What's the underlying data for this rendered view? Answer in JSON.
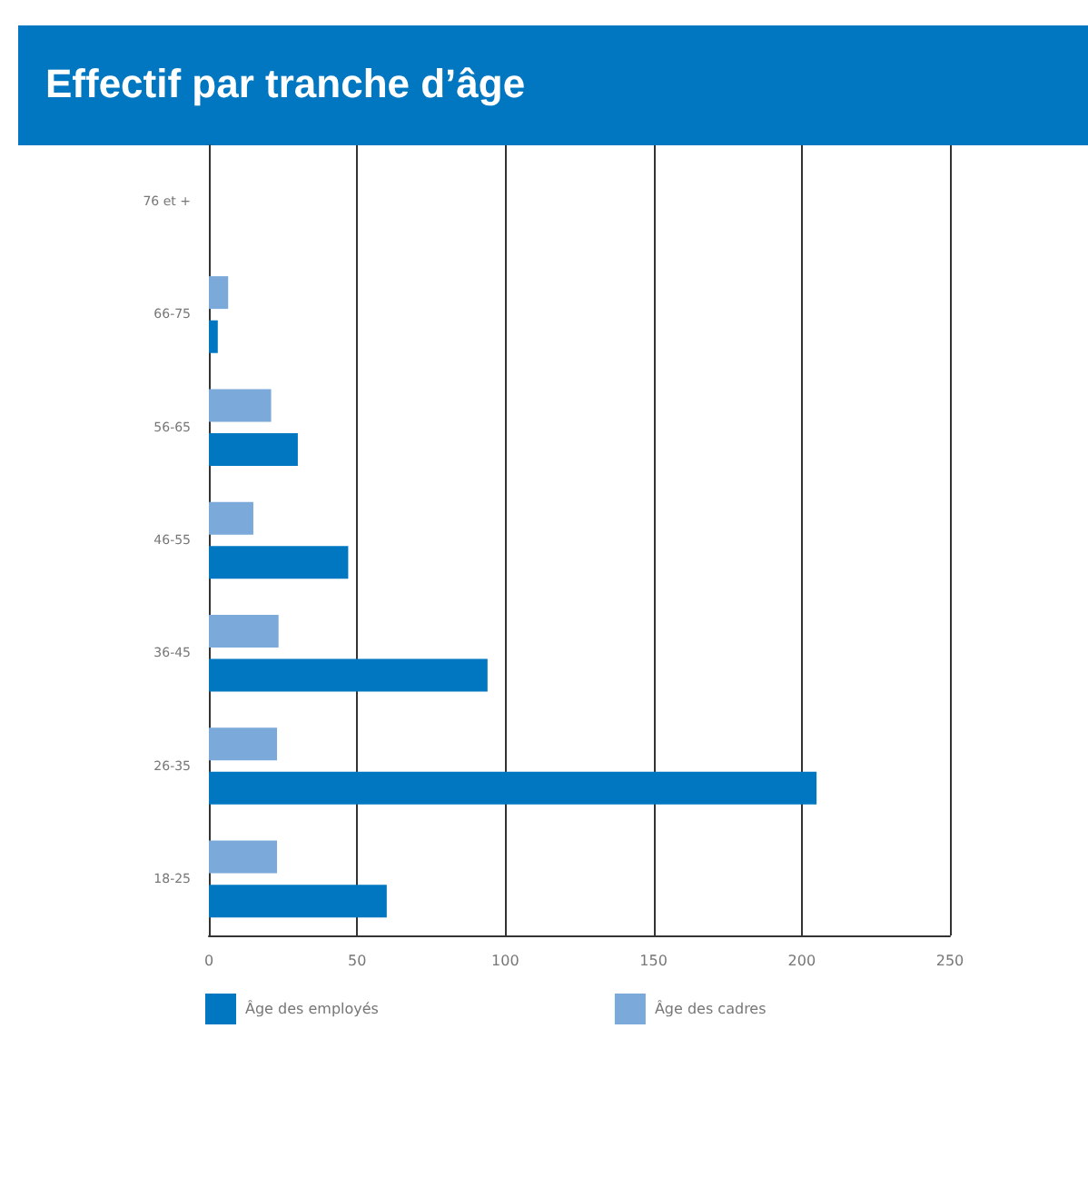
{
  "chart_data": {
    "type": "bar",
    "orientation": "horizontal",
    "title": "Effectif par tranche d’âge",
    "categories": [
      "76 et +",
      "66-75",
      "56-65",
      "46-55",
      "36-45",
      "26-35",
      "18-25"
    ],
    "series": [
      {
        "name": "Âge des employés",
        "color": "#0077c0",
        "values": [
          0,
          3,
          30,
          47,
          94,
          205,
          60
        ]
      },
      {
        "name": "Âge des cadres",
        "color": "#7aa9da",
        "values": [
          0,
          6.5,
          21,
          15,
          23.5,
          23,
          23
        ]
      }
    ],
    "xlim": [
      0,
      250
    ],
    "xticks": [
      0,
      50,
      100,
      150,
      200,
      250
    ],
    "grid": "x",
    "legend": "bottom"
  }
}
